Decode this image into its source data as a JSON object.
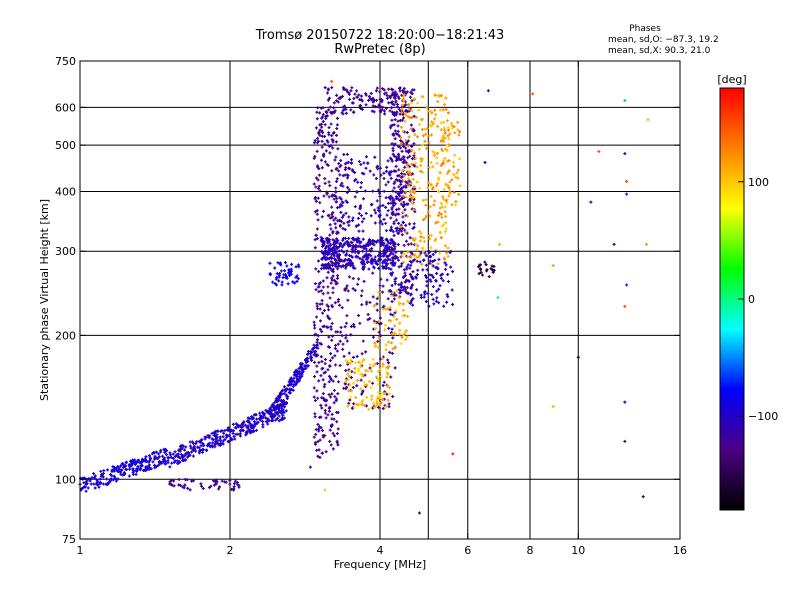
{
  "chart_data": {
    "type": "scatter",
    "title": "Tromsø 20150722 18:20:00−18:21:43",
    "subtitle": "RwPretec (8p)",
    "xlabel": "Frequency [MHz]",
    "ylabel": "Stationary phase Virtual Height [km]",
    "xscale": "log",
    "yscale": "log",
    "xlim": [
      1,
      16
    ],
    "ylim": [
      75,
      750
    ],
    "xticks": [
      1,
      2,
      4,
      6,
      8,
      10,
      16
    ],
    "xtick_labels": [
      "1",
      "2",
      "4",
      "6",
      "8",
      "10",
      "16"
    ],
    "yticks": [
      75,
      100,
      200,
      300,
      400,
      500,
      600,
      750
    ],
    "ytick_labels": [
      "75",
      "100",
      "200",
      "300",
      "400",
      "500",
      "600",
      "750"
    ],
    "xgrid": [
      2,
      4,
      5,
      6,
      8,
      10
    ],
    "ygrid": [
      100,
      200,
      300,
      400,
      500,
      600
    ],
    "grid": true,
    "stats": {
      "heading": "Phases",
      "line1": "mean, sd,O: −87.3, 19.2",
      "line2": "mean, sd,X: 90.3, 21.0"
    },
    "colorbar": {
      "label": "[deg]",
      "range": [
        -180,
        180
      ],
      "ticks": [
        100,
        0,
        -100
      ],
      "tick_labels": [
        "100",
        "0",
        "−100"
      ],
      "colors": [
        "#000000",
        "#4b0082",
        "#0000ff",
        "#00ffff",
        "#00ff00",
        "#ffff00",
        "#ff8000",
        "#ff0000"
      ]
    },
    "clusters": [
      {
        "f0": 1.0,
        "f1": 1.5,
        "h0": 97,
        "h1": 112,
        "phase": [
          -110,
          -80
        ],
        "n": 220,
        "shape": "ramp"
      },
      {
        "f0": 1.5,
        "f1": 2.6,
        "h0": 110,
        "h1": 140,
        "phase": [
          -115,
          -85
        ],
        "n": 320,
        "shape": "ramp"
      },
      {
        "f0": 2.4,
        "f1": 3.0,
        "h0": 135,
        "h1": 190,
        "phase": [
          -110,
          -90
        ],
        "n": 180,
        "shape": "ramp"
      },
      {
        "f0": 1.5,
        "f1": 2.1,
        "h0": 95,
        "h1": 100,
        "phase": [
          -130,
          -110
        ],
        "n": 50,
        "shape": "box"
      },
      {
        "f0": 2.4,
        "f1": 2.75,
        "h0": 255,
        "h1": 285,
        "phase": [
          -95,
          -75
        ],
        "n": 50,
        "shape": "box"
      },
      {
        "f0": 2.95,
        "f1": 3.3,
        "h0": 110,
        "h1": 600,
        "phase": [
          -135,
          -110
        ],
        "n": 380,
        "shape": "box"
      },
      {
        "f0": 3.05,
        "f1": 4.3,
        "h0": 275,
        "h1": 320,
        "phase": [
          -120,
          -95
        ],
        "n": 380,
        "shape": "box"
      },
      {
        "f0": 3.1,
        "f1": 4.5,
        "h0": 580,
        "h1": 660,
        "phase": [
          -130,
          -110
        ],
        "n": 140,
        "shape": "box"
      },
      {
        "f0": 3.3,
        "f1": 4.5,
        "h0": 330,
        "h1": 480,
        "phase": [
          -125,
          -100
        ],
        "n": 200,
        "shape": "box"
      },
      {
        "f0": 3.3,
        "f1": 4.3,
        "h0": 140,
        "h1": 270,
        "phase": [
          -130,
          -110
        ],
        "n": 150,
        "shape": "box"
      },
      {
        "f0": 4.2,
        "f1": 4.7,
        "h0": 240,
        "h1": 660,
        "phase": [
          -130,
          -100
        ],
        "n": 300,
        "shape": "box"
      },
      {
        "f0": 3.4,
        "f1": 4.2,
        "h0": 140,
        "h1": 180,
        "phase": [
          85,
          120
        ],
        "n": 100,
        "shape": "box"
      },
      {
        "f0": 3.9,
        "f1": 4.6,
        "h0": 185,
        "h1": 250,
        "phase": [
          90,
          125
        ],
        "n": 60,
        "shape": "box"
      },
      {
        "f0": 4.4,
        "f1": 5.5,
        "h0": 280,
        "h1": 640,
        "phase": [
          95,
          130
        ],
        "n": 240,
        "shape": "box"
      },
      {
        "f0": 4.6,
        "f1": 5.6,
        "h0": 230,
        "h1": 300,
        "phase": [
          -115,
          -90
        ],
        "n": 90,
        "shape": "box"
      },
      {
        "f0": 5.3,
        "f1": 5.8,
        "h0": 370,
        "h1": 560,
        "phase": [
          95,
          135
        ],
        "n": 60,
        "shape": "box"
      },
      {
        "f0": 6.3,
        "f1": 6.8,
        "h0": 265,
        "h1": 285,
        "phase": [
          -160,
          -140
        ],
        "n": 20,
        "shape": "box"
      }
    ],
    "outliers": [
      {
        "f": 6.6,
        "h": 650,
        "phase": -120
      },
      {
        "f": 6.5,
        "h": 460,
        "phase": -100
      },
      {
        "f": 6.9,
        "h": 240,
        "phase": -30
      },
      {
        "f": 6.95,
        "h": 310,
        "phase": 110
      },
      {
        "f": 8.1,
        "h": 640,
        "phase": 150
      },
      {
        "f": 8.9,
        "h": 280,
        "phase": 120
      },
      {
        "f": 8.9,
        "h": 142,
        "phase": 110
      },
      {
        "f": 10.0,
        "h": 180,
        "phase": -160
      },
      {
        "f": 10.6,
        "h": 380,
        "phase": -110
      },
      {
        "f": 11.0,
        "h": 485,
        "phase": 150
      },
      {
        "f": 11.8,
        "h": 310,
        "phase": -110
      },
      {
        "f": 12.4,
        "h": 620,
        "phase": -40
      },
      {
        "f": 12.4,
        "h": 480,
        "phase": -110
      },
      {
        "f": 12.5,
        "h": 420,
        "phase": 150
      },
      {
        "f": 12.5,
        "h": 395,
        "phase": -70
      },
      {
        "f": 12.4,
        "h": 230,
        "phase": 150
      },
      {
        "f": 12.5,
        "h": 255,
        "phase": -70
      },
      {
        "f": 12.4,
        "h": 145,
        "phase": -110
      },
      {
        "f": 12.4,
        "h": 120,
        "phase": -120
      },
      {
        "f": 13.5,
        "h": 92,
        "phase": -140
      },
      {
        "f": 13.8,
        "h": 565,
        "phase": 110
      },
      {
        "f": 13.7,
        "h": 310,
        "phase": 120
      },
      {
        "f": 4.8,
        "h": 85,
        "phase": -120
      },
      {
        "f": 5.6,
        "h": 113,
        "phase": 170
      },
      {
        "f": 3.1,
        "h": 95,
        "phase": 100
      },
      {
        "f": 2.9,
        "h": 106,
        "phase": -80
      },
      {
        "f": 3.2,
        "h": 680,
        "phase": 150
      }
    ]
  }
}
